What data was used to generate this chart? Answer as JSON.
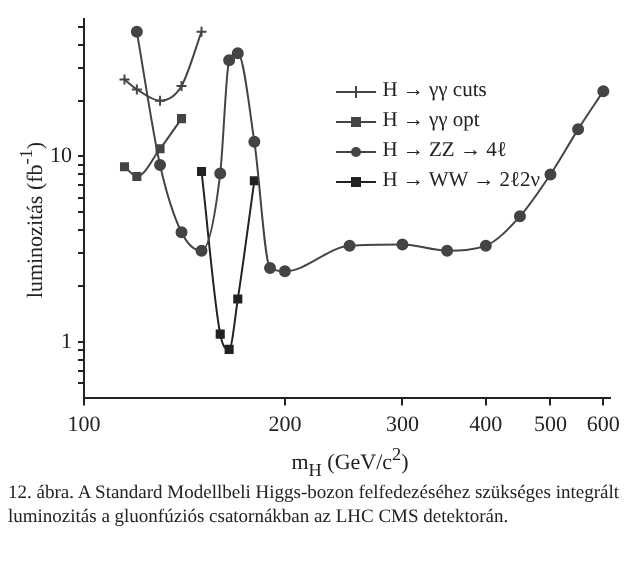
{
  "chart_data": {
    "type": "line",
    "xlabel": "m$_{H}$ (GeV/c$^{2}$)",
    "ylabel": "luminozitás (fb$^{-1}$)",
    "log": "xy",
    "xlim": [
      100,
      614
    ],
    "xticks": [
      100,
      200,
      300,
      400,
      500,
      600
    ],
    "ylim": [
      0.5,
      55
    ],
    "yticks": [
      {
        "value": 0.6,
        "label": null
      },
      {
        "value": 0.7,
        "label": null
      },
      {
        "value": 0.8,
        "label": null
      },
      {
        "value": 0.9,
        "label": null
      },
      1,
      {
        "value": 2,
        "label": null
      },
      {
        "value": 3,
        "label": null
      },
      {
        "value": 4,
        "label": null
      },
      {
        "value": 5,
        "label": null
      },
      {
        "value": 6,
        "label": null
      },
      {
        "value": 7,
        "label": null
      },
      {
        "value": 8,
        "label": null
      },
      {
        "value": 9,
        "label": null
      },
      10,
      {
        "value": 20,
        "label": null
      },
      {
        "value": 30,
        "label": null
      },
      {
        "value": 40,
        "label": null
      },
      {
        "value": 50,
        "label": null
      }
    ],
    "grid": false,
    "legend": "top right",
    "series": [
      {
        "name": "H → γγ cuts",
        "color": "#444444",
        "marker": "cross",
        "x": [
          115,
          120,
          130,
          140,
          150
        ],
        "values": [
          26,
          23,
          20,
          24,
          47
        ]
      },
      {
        "name": "H → γγ opt",
        "color": "#444444",
        "marker": "square",
        "x": [
          115,
          120,
          130,
          140
        ],
        "values": [
          8.8,
          7.8,
          11,
          16
        ]
      },
      {
        "name": "H → ZZ → 4ℓ",
        "color": "#444444",
        "marker": "circle",
        "x": [
          120,
          130,
          140,
          150,
          160,
          165,
          170,
          180,
          190,
          200,
          250,
          300,
          350,
          400,
          450,
          500,
          550,
          600
        ],
        "values": [
          47,
          9,
          3.9,
          3.1,
          8.1,
          33,
          36,
          12,
          2.5,
          2.4,
          3.3,
          3.35,
          3.1,
          3.3,
          4.75,
          8,
          14,
          22.5
        ]
      },
      {
        "name": "H → WW → 2ℓ2ν",
        "color": "#222222",
        "marker": "square",
        "x": [
          150,
          160,
          165,
          170,
          180
        ],
        "values": [
          8.3,
          1.1,
          0.91,
          1.7,
          7.4
        ]
      }
    ],
    "annotations": [
      "12. ábra. A Standard Modellbeli Higgs-bozon felfedezéséhez szükséges integrált luminozitás a gluonfúziós csatornákban az LHC CMS detektorán."
    ]
  }
}
